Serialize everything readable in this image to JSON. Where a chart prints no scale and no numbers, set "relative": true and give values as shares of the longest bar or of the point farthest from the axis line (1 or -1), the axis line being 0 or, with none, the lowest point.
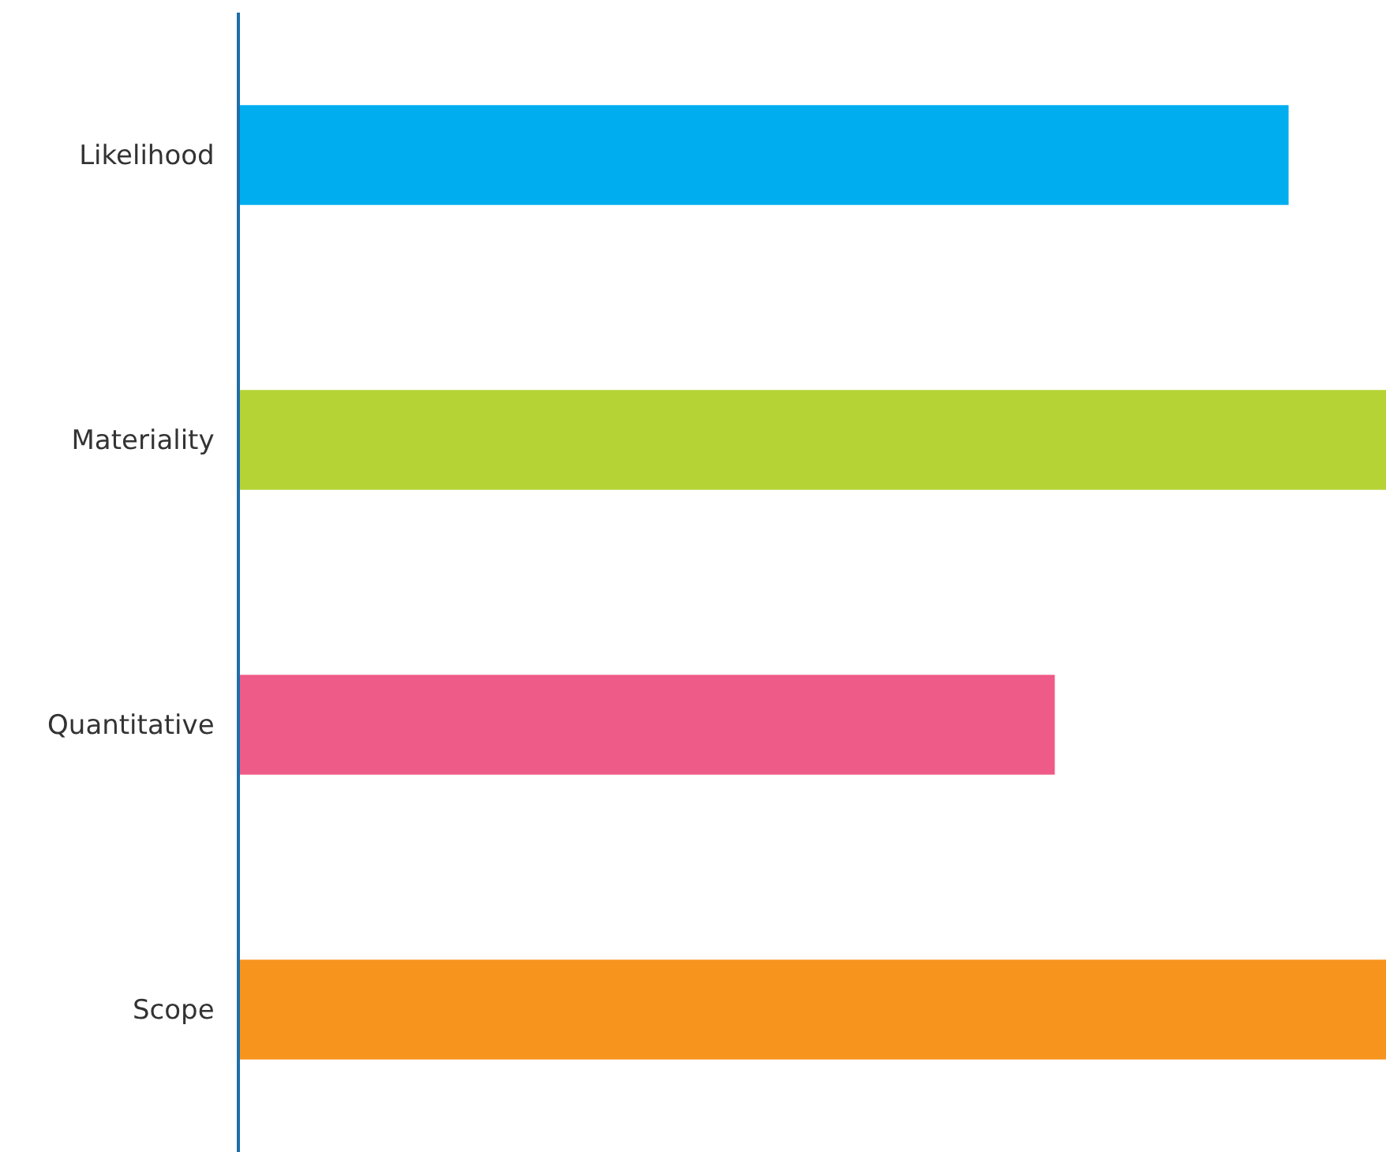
{
  "chart_data": {
    "type": "bar",
    "orientation": "horizontal",
    "relative": true,
    "categories": [
      "Likelihood",
      "Materiality",
      "Quantitative",
      "Scope"
    ],
    "values": [
      0.915,
      1,
      0.711,
      1
    ],
    "colors": [
      "#00aeef",
      "#b5d334",
      "#ef5b88",
      "#f7941e"
    ],
    "legend": false
  }
}
